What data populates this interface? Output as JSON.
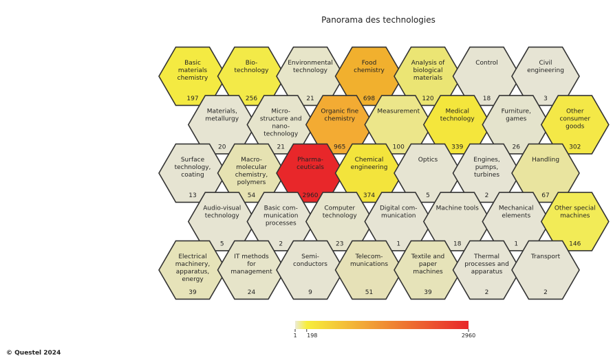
{
  "chart_data": {
    "type": "heatmap",
    "title": "Panorama des technologies",
    "colorscale": {
      "low": "#ecebd6",
      "mid": "#f7ee3c",
      "high": "#e8262a",
      "min": 1,
      "max": 2960,
      "ticks": [
        {
          "value": 1,
          "label": "1"
        },
        {
          "value": 198,
          "label": "198"
        },
        {
          "value": 2960,
          "label": "2960"
        }
      ]
    },
    "rows": [
      [
        {
          "label": "Basic\nmaterials\nchemistry",
          "value": 197
        },
        {
          "label": "Bio-\ntechnology",
          "value": 256
        },
        {
          "label": "Environmental\ntechnology",
          "value": 21
        },
        {
          "label": "Food\nchemistry",
          "value": 698
        },
        {
          "label": "Analysis of\nbiological\nmaterials",
          "value": 120
        },
        {
          "label": "Control",
          "value": 18
        },
        {
          "label": "Civil\nengineering",
          "value": 3
        }
      ],
      [
        {
          "label": "Materials,\nmetallurgy",
          "value": 20
        },
        {
          "label": "Micro-\nstructure and\nnano-\ntechnology",
          "value": 21
        },
        {
          "label": "Organic fine\nchemistry",
          "value": 965
        },
        {
          "label": "Measurement",
          "value": 100
        },
        {
          "label": "Medical\ntechnology",
          "value": 339
        },
        {
          "label": "Furniture,\ngames",
          "value": 26
        },
        {
          "label": "Other\nconsumer\ngoods",
          "value": 302
        }
      ],
      [
        {
          "label": "Surface\ntechnology,\ncoating",
          "value": 13
        },
        {
          "label": "Macro-\nmolecular\nchemistry,\npolymers",
          "value": 54
        },
        {
          "label": "Pharma-\nceuticals",
          "value": 2960
        },
        {
          "label": "Chemical\nengineering",
          "value": 374
        },
        {
          "label": "Optics",
          "value": 5
        },
        {
          "label": "Engines,\npumps,\nturbines",
          "value": 2
        },
        {
          "label": "Handling",
          "value": 67
        }
      ],
      [
        {
          "label": "Audio-visual\ntechnology",
          "value": 5
        },
        {
          "label": "Basic com-\nmunication\nprocesses",
          "value": 2
        },
        {
          "label": "Computer\ntechnology",
          "value": 23
        },
        {
          "label": "Digital com-\nmunication",
          "value": 1
        },
        {
          "label": "Machine tools",
          "value": 18
        },
        {
          "label": "Mechanical\nelements",
          "value": 1
        },
        {
          "label": "Other special\nmachines",
          "value": 146
        }
      ],
      [
        {
          "label": "Electrical\nmachinery,\napparatus,\nenergy",
          "value": 39
        },
        {
          "label": "IT methods\nfor\nmanagement",
          "value": 24
        },
        {
          "label": "Semi-\nconductors",
          "value": 9
        },
        {
          "label": "Telecom-\nmunications",
          "value": 51
        },
        {
          "label": "Textile and\npaper\nmachines",
          "value": 39
        },
        {
          "label": "Thermal\nprocesses and\napparatus",
          "value": 2
        },
        {
          "label": "Transport",
          "value": 2
        }
      ]
    ],
    "fills": [
      [
        "#f4ea42",
        "#f3ea48",
        "#e7e5c9",
        "#f1b02e",
        "#ebe574",
        "#e6e4d2",
        "#e6e4d4"
      ],
      [
        "#e6e4d2",
        "#e6e4cc",
        "#f3ab33",
        "#ece68a",
        "#f4e63c",
        "#e4e3cc",
        "#f4e847"
      ],
      [
        "#e6e4d2",
        "#e6e2b2",
        "#e8272a",
        "#f3e43c",
        "#e6e4d2",
        "#e6e4d4",
        "#e9e49f"
      ],
      [
        "#e6e4d2",
        "#e6e4d4",
        "#e6e4cc",
        "#e6e4d4",
        "#e6e4d2",
        "#e6e4d4",
        "#f2eb57"
      ],
      [
        "#e6e3b9",
        "#e6e4c9",
        "#e6e4d2",
        "#e6e1b7",
        "#e6e3b9",
        "#e6e4d4",
        "#e6e4d4"
      ]
    ]
  },
  "copyright": "© Questel 2024"
}
